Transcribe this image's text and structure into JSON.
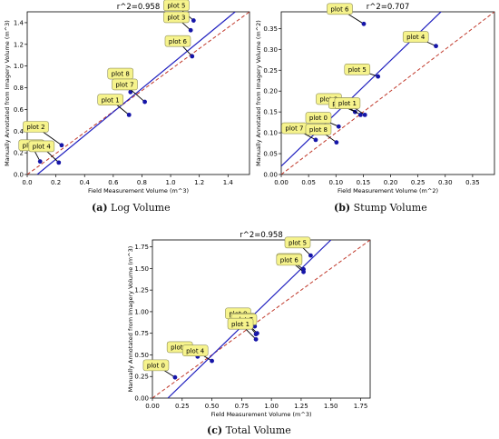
{
  "chart_data": [
    {
      "type": "scatter",
      "title": "r^2=0.958",
      "xlabel": "Field Measurement Volume (m^3)",
      "ylabel": "Manually Annotated from Imagery Volume (m^3)",
      "xlim": [
        0,
        1.55
      ],
      "ylim": [
        0,
        1.5
      ],
      "xticks": [
        "0.0",
        "0.2",
        "0.4",
        "0.6",
        "0.8",
        "1.0",
        "1.2",
        "1.4"
      ],
      "yticks": [
        "0.0",
        "0.2",
        "0.4",
        "0.6",
        "0.8",
        "1.0",
        "1.2",
        "1.4"
      ],
      "xtick_values": [
        0,
        0.2,
        0.4,
        0.6,
        0.8,
        1.0,
        1.2,
        1.4
      ],
      "ytick_values": [
        0,
        0.2,
        0.4,
        0.6,
        0.8,
        1.0,
        1.2,
        1.4
      ],
      "fit_line": [
        [
          0.07,
          0.0
        ],
        [
          1.45,
          1.5
        ]
      ],
      "identity_line": [
        [
          0,
          0
        ],
        [
          1.55,
          1.5
        ]
      ],
      "caption_letter": "(a)",
      "caption_text": "Log Volume",
      "points": [
        {
          "label": "plot 0",
          "x": 0.09,
          "y": 0.12,
          "lx": 0.03,
          "ly": 0.27
        },
        {
          "label": "plot 2",
          "x": 0.24,
          "y": 0.27,
          "lx": 0.06,
          "ly": 0.44
        },
        {
          "label": "plot 4",
          "x": 0.22,
          "y": 0.11,
          "lx": 0.1,
          "ly": 0.26
        },
        {
          "label": "plot 1",
          "x": 0.71,
          "y": 0.55,
          "lx": 0.58,
          "ly": 0.69
        },
        {
          "label": "plot 8",
          "x": 0.72,
          "y": 0.76,
          "lx": 0.65,
          "ly": 0.93
        },
        {
          "label": "plot 7",
          "x": 0.82,
          "y": 0.67,
          "lx": 0.68,
          "ly": 0.83
        },
        {
          "label": "plot 5",
          "x": 1.16,
          "y": 1.42,
          "lx": 1.04,
          "ly": 1.56
        },
        {
          "label": "plot 3",
          "x": 1.14,
          "y": 1.33,
          "lx": 1.04,
          "ly": 1.45
        },
        {
          "label": "plot 6",
          "x": 1.15,
          "y": 1.09,
          "lx": 1.05,
          "ly": 1.23
        }
      ]
    },
    {
      "type": "scatter",
      "title": "r^2=0.707",
      "xlabel": "Field Measurement Volume (m^2)",
      "ylabel": "Manually Annotated from Imagery Volume (m^2)",
      "xlim": [
        0,
        0.39
      ],
      "ylim": [
        0,
        0.39
      ],
      "xticks": [
        "0.00",
        "0.05",
        "0.10",
        "0.15",
        "0.20",
        "0.25",
        "0.30",
        "0.35"
      ],
      "yticks": [
        "0.00",
        "0.05",
        "0.10",
        "0.15",
        "0.20",
        "0.25",
        "0.30",
        "0.35"
      ],
      "xtick_values": [
        0,
        0.05,
        0.1,
        0.15,
        0.2,
        0.25,
        0.3,
        0.35
      ],
      "ytick_values": [
        0,
        0.05,
        0.1,
        0.15,
        0.2,
        0.25,
        0.3,
        0.35
      ],
      "fit_line": [
        [
          0.0,
          0.02
        ],
        [
          0.3,
          0.4
        ]
      ],
      "identity_line": [
        [
          0,
          0
        ],
        [
          0.39,
          0.39
        ]
      ],
      "caption_letter": "(b)",
      "caption_text": "Stump Volume",
      "points": [
        {
          "label": "plot 6",
          "x": 0.151,
          "y": 0.361,
          "lx": 0.107,
          "ly": 0.397
        },
        {
          "label": "plot 4",
          "x": 0.283,
          "y": 0.308,
          "lx": 0.246,
          "ly": 0.33
        },
        {
          "label": "plot 5",
          "x": 0.177,
          "y": 0.235,
          "lx": 0.139,
          "ly": 0.252
        },
        {
          "label": "plot 2",
          "x": 0.135,
          "y": 0.15,
          "lx": 0.087,
          "ly": 0.181
        },
        {
          "label": "plot 3",
          "x": 0.145,
          "y": 0.143,
          "lx": 0.11,
          "ly": 0.171
        },
        {
          "label": "plot 1",
          "x": 0.153,
          "y": 0.143,
          "lx": 0.121,
          "ly": 0.171
        },
        {
          "label": "plot 0",
          "x": 0.105,
          "y": 0.115,
          "lx": 0.068,
          "ly": 0.136
        },
        {
          "label": "plot 7",
          "x": 0.063,
          "y": 0.083,
          "lx": 0.024,
          "ly": 0.111
        },
        {
          "label": "plot 8",
          "x": 0.101,
          "y": 0.077,
          "lx": 0.068,
          "ly": 0.108
        }
      ]
    },
    {
      "type": "scatter",
      "title": "r^2=0.958",
      "xlabel": "Field Measurement Volume (m^3)",
      "ylabel": "Manually Annotated from Imagery Volume (m^3)",
      "xlim": [
        0,
        1.83
      ],
      "ylim": [
        0,
        1.83
      ],
      "xticks": [
        "0.00",
        "0.25",
        "0.50",
        "0.75",
        "1.00",
        "1.25",
        "1.50",
        "1.75"
      ],
      "yticks": [
        "0.00",
        "0.25",
        "0.50",
        "0.75",
        "1.00",
        "1.25",
        "1.50",
        "1.75"
      ],
      "xtick_values": [
        0,
        0.25,
        0.5,
        0.75,
        1.0,
        1.25,
        1.5,
        1.75
      ],
      "ytick_values": [
        0,
        0.25,
        0.5,
        0.75,
        1.0,
        1.25,
        1.5,
        1.75
      ],
      "fit_line": [
        [
          0.13,
          0.0
        ],
        [
          1.5,
          1.83
        ]
      ],
      "identity_line": [
        [
          0,
          0
        ],
        [
          1.83,
          1.83
        ]
      ],
      "caption_letter": "(c)",
      "caption_text": "Total Volume",
      "points": [
        {
          "label": "plot 5",
          "x": 1.33,
          "y": 1.65,
          "lx": 1.22,
          "ly": 1.8
        },
        {
          "label": "plot 3",
          "x": 1.27,
          "y": 1.49,
          "lx": 1.15,
          "ly": 1.61
        },
        {
          "label": "plot 6",
          "x": 1.27,
          "y": 1.46,
          "lx": 1.15,
          "ly": 1.6
        },
        {
          "label": "plot 8",
          "x": 0.86,
          "y": 0.83,
          "lx": 0.72,
          "ly": 0.98
        },
        {
          "label": "plot 2",
          "x": 0.88,
          "y": 0.75,
          "lx": 0.76,
          "ly": 0.92
        },
        {
          "label": "plot 7",
          "x": 0.87,
          "y": 0.74,
          "lx": 0.77,
          "ly": 0.91
        },
        {
          "label": "plot 1",
          "x": 0.87,
          "y": 0.68,
          "lx": 0.74,
          "ly": 0.86
        },
        {
          "label": "plot 2",
          "x": 0.38,
          "y": 0.48,
          "lx": 0.23,
          "ly": 0.59
        },
        {
          "label": "plot 4",
          "x": 0.5,
          "y": 0.43,
          "lx": 0.36,
          "ly": 0.55
        },
        {
          "label": "plot 0",
          "x": 0.19,
          "y": 0.24,
          "lx": 0.03,
          "ly": 0.38
        }
      ]
    }
  ]
}
